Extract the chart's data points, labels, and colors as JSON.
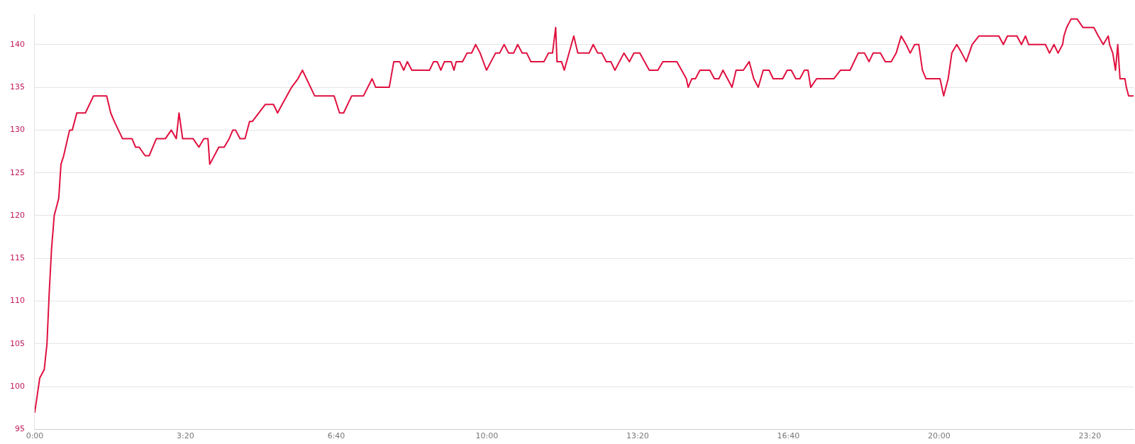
{
  "chart_data": {
    "type": "line",
    "x": [
      0,
      0.11,
      0.21,
      0.27,
      0.32,
      0.37,
      0.43,
      0.53,
      0.58,
      0.64,
      0.77,
      0.83,
      0.93,
      1.12,
      1.3,
      1.59,
      1.68,
      1.76,
      1.94,
      2.15,
      2.23,
      2.31,
      2.44,
      2.53,
      2.69,
      2.89,
      3.02,
      3.13,
      3.19,
      3.27,
      3.5,
      3.63,
      3.74,
      3.83,
      3.87,
      4.07,
      4.19,
      4.3,
      4.38,
      4.44,
      4.54,
      4.65,
      4.75,
      4.81,
      5.1,
      5.28,
      5.37,
      5.47,
      5.68,
      5.82,
      5.92,
      6.19,
      6.62,
      6.74,
      6.83,
      7.01,
      7.27,
      7.46,
      7.54,
      7.84,
      7.94,
      8.07,
      8.16,
      8.24,
      8.34,
      8.73,
      8.82,
      8.9,
      8.98,
      9.06,
      9.21,
      9.27,
      9.32,
      9.46,
      9.56,
      9.66,
      9.75,
      9.85,
      9.99,
      10.19,
      10.28,
      10.38,
      10.48,
      10.59,
      10.68,
      10.78,
      10.88,
      10.97,
      11.26,
      11.36,
      11.45,
      11.52,
      11.55,
      11.65,
      11.71,
      11.92,
      12.01,
      12.26,
      12.35,
      12.45,
      12.54,
      12.64,
      12.74,
      12.83,
      13.03,
      13.15,
      13.25,
      13.38,
      13.59,
      13.78,
      13.89,
      14.2,
      14.41,
      14.45,
      14.53,
      14.61,
      14.71,
      14.93,
      15.03,
      15.13,
      15.22,
      15.42,
      15.51,
      15.67,
      15.8,
      15.9,
      16,
      16.11,
      16.24,
      16.33,
      16.54,
      16.64,
      16.73,
      16.83,
      16.92,
      17.02,
      17.1,
      17.16,
      17.29,
      17.67,
      17.82,
      18.03,
      18.21,
      18.35,
      18.45,
      18.54,
      18.7,
      18.81,
      18.94,
      19.05,
      19.16,
      19.27,
      19.36,
      19.46,
      19.55,
      19.63,
      19.71,
      20.02,
      20.1,
      20.2,
      20.28,
      20.39,
      20.5,
      20.6,
      20.73,
      20.88,
      21.32,
      21.42,
      21.51,
      21.72,
      21.82,
      21.91,
      21.98,
      22.35,
      22.44,
      22.54,
      22.63,
      22.73,
      22.76,
      22.82,
      22.92,
      23.05,
      23.18,
      23.42,
      23.52,
      23.63,
      23.74,
      23.77,
      23.84,
      23.9,
      23.95,
      24,
      24.11,
      24.14,
      24.19,
      24.29
    ],
    "series": [
      {
        "color": "#e0103f",
        "values": [
          97,
          101,
          102,
          105,
          111,
          116,
          120,
          122,
          126,
          127,
          130,
          130,
          132,
          132,
          134,
          134,
          132,
          131,
          129,
          129,
          128,
          128,
          127,
          127,
          129,
          129,
          130,
          129,
          132,
          129,
          129,
          128,
          129,
          129,
          126,
          128,
          128,
          129,
          130,
          130,
          129,
          129,
          131,
          131,
          133,
          133,
          132,
          133,
          135,
          136,
          137,
          134,
          134,
          132,
          132,
          134,
          134,
          136,
          135,
          135,
          138,
          138,
          137,
          138,
          137,
          137,
          138,
          138,
          137,
          138,
          138,
          137,
          138,
          138,
          139,
          139,
          140,
          139,
          137,
          139,
          139,
          140,
          139,
          139,
          140,
          139,
          139,
          138,
          138,
          139,
          139,
          142,
          138,
          138,
          137,
          141,
          139,
          139,
          140,
          139,
          139,
          138,
          138,
          137,
          139,
          138,
          139,
          139,
          137,
          137,
          138,
          138,
          136,
          135,
          136,
          136,
          137,
          137,
          136,
          136,
          137,
          135,
          137,
          137,
          138,
          136,
          135,
          137,
          137,
          136,
          136,
          137,
          137,
          136,
          136,
          137,
          137,
          135,
          136,
          136,
          137,
          137,
          139,
          139,
          138,
          139,
          139,
          138,
          138,
          139,
          141,
          140,
          139,
          140,
          140,
          137,
          136,
          136,
          134,
          136,
          139,
          140,
          139,
          138,
          140,
          141,
          141,
          140,
          141,
          141,
          140,
          141,
          140,
          140,
          139,
          140,
          139,
          140,
          141,
          142,
          143,
          143,
          142,
          142,
          141,
          140,
          141,
          140,
          139,
          137,
          140,
          136,
          136,
          135,
          134,
          134
        ]
      }
    ],
    "xlim": [
      0,
      24.3
    ],
    "ylim": [
      95,
      143.5
    ],
    "xticks": [
      {
        "value": 0,
        "label": "0:00"
      },
      {
        "value": 3.333,
        "label": "3:20"
      },
      {
        "value": 6.667,
        "label": "6:40"
      },
      {
        "value": 10,
        "label": "10:00"
      },
      {
        "value": 13.333,
        "label": "13:20"
      },
      {
        "value": 16.667,
        "label": "16:40"
      },
      {
        "value": 20,
        "label": "20:00"
      },
      {
        "value": 23.333,
        "label": "23:20"
      }
    ],
    "yticks": [
      95,
      100,
      105,
      110,
      115,
      120,
      125,
      130,
      135,
      140
    ],
    "grid": "y",
    "legend": false,
    "marker": "none",
    "line_style": "solid"
  }
}
